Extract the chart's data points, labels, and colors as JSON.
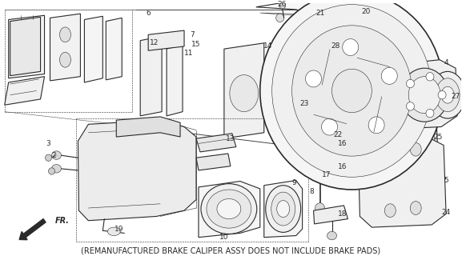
{
  "caption": "(REMANUFACTURED BRAKE CALIPER ASSY DOES NOT INCLUDE BRAKE PADS)",
  "caption_fontsize": 7.0,
  "bg_color": "#ffffff",
  "line_color": "#2a2a2a",
  "fig_width": 5.77,
  "fig_height": 3.2,
  "dpi": 100,
  "fr_label": "FR.",
  "lw": 0.8,
  "lw_t": 0.4
}
